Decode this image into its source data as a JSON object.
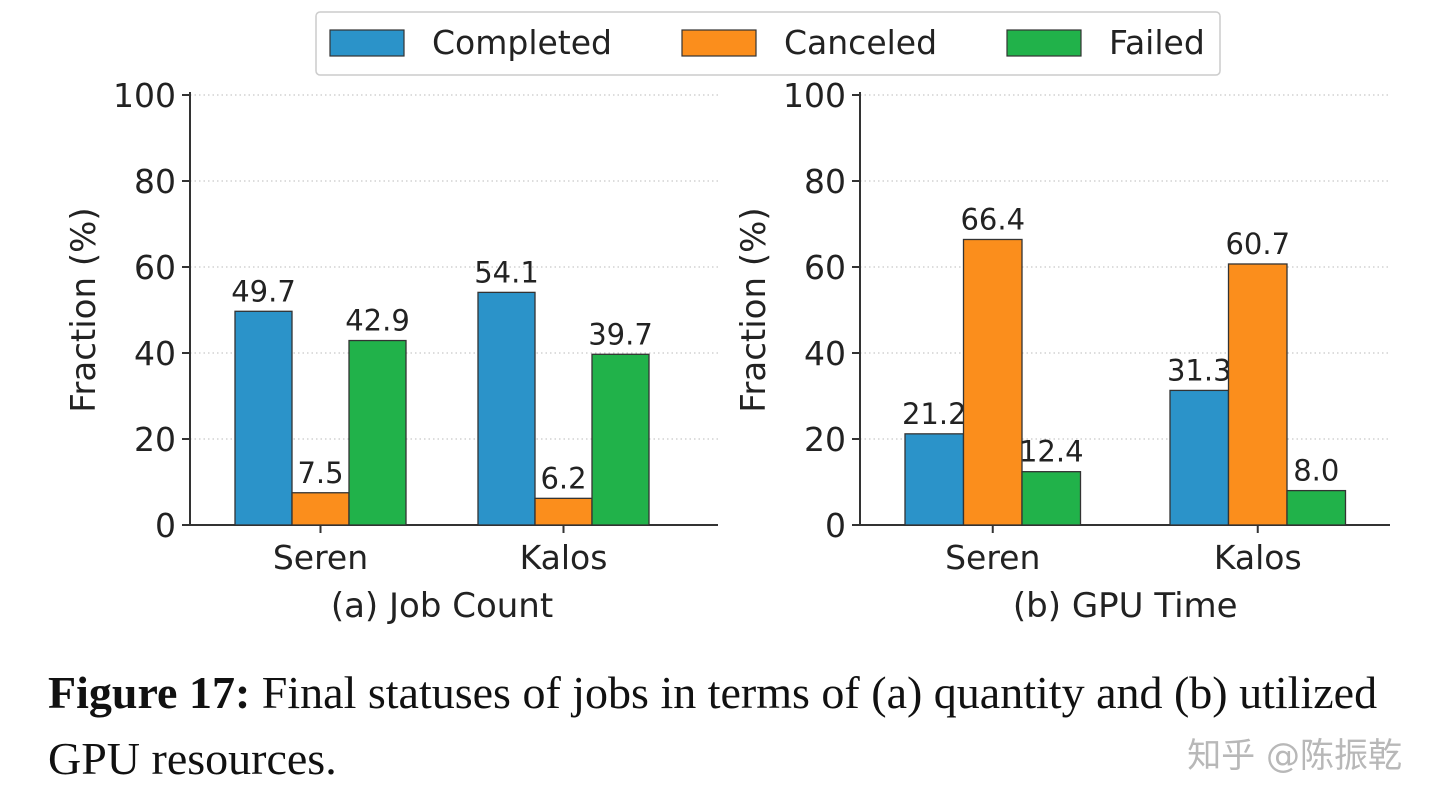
{
  "legend": {
    "placement": "top-center",
    "entries": [
      {
        "name": "Completed",
        "color": "#2b93c9"
      },
      {
        "name": "Canceled",
        "color": "#fb8e1c"
      },
      {
        "name": "Failed",
        "color": "#21b24a"
      }
    ]
  },
  "chart_data": [
    {
      "type": "bar",
      "title": "(a) Job Count",
      "ylabel": "Fraction (%)",
      "xlabel": "",
      "ylim": [
        0,
        100
      ],
      "yticks": [
        0,
        20,
        40,
        60,
        80,
        100
      ],
      "grid": "horizontal dotted",
      "categories": [
        "Seren",
        "Kalos"
      ],
      "series": [
        {
          "name": "Completed",
          "values": [
            49.7,
            54.1
          ],
          "labels": [
            "49.7",
            "54.1"
          ]
        },
        {
          "name": "Canceled",
          "values": [
            7.5,
            6.2
          ],
          "labels": [
            "7.5",
            "6.2"
          ]
        },
        {
          "name": "Failed",
          "values": [
            42.9,
            39.7
          ],
          "labels": [
            "42.9",
            "39.7"
          ]
        }
      ]
    },
    {
      "type": "bar",
      "title": "(b) GPU Time",
      "ylabel": "Fraction (%)",
      "xlabel": "",
      "ylim": [
        0,
        100
      ],
      "yticks": [
        0,
        20,
        40,
        60,
        80,
        100
      ],
      "grid": "horizontal dotted",
      "categories": [
        "Seren",
        "Kalos"
      ],
      "series": [
        {
          "name": "Completed",
          "values": [
            21.2,
            31.3
          ],
          "labels": [
            "21.2",
            "31.3"
          ]
        },
        {
          "name": "Canceled",
          "values": [
            66.4,
            60.7
          ],
          "labels": [
            "66.4",
            "60.7"
          ]
        },
        {
          "name": "Failed",
          "values": [
            12.4,
            8.0
          ],
          "labels": [
            "12.4",
            "8.0"
          ]
        }
      ]
    }
  ],
  "caption": {
    "label": "Figure 17:",
    "text": " Final statuses of jobs in terms of (a) quantity and (b) utilized GPU resources."
  },
  "watermark": "知乎 @陈振乾"
}
